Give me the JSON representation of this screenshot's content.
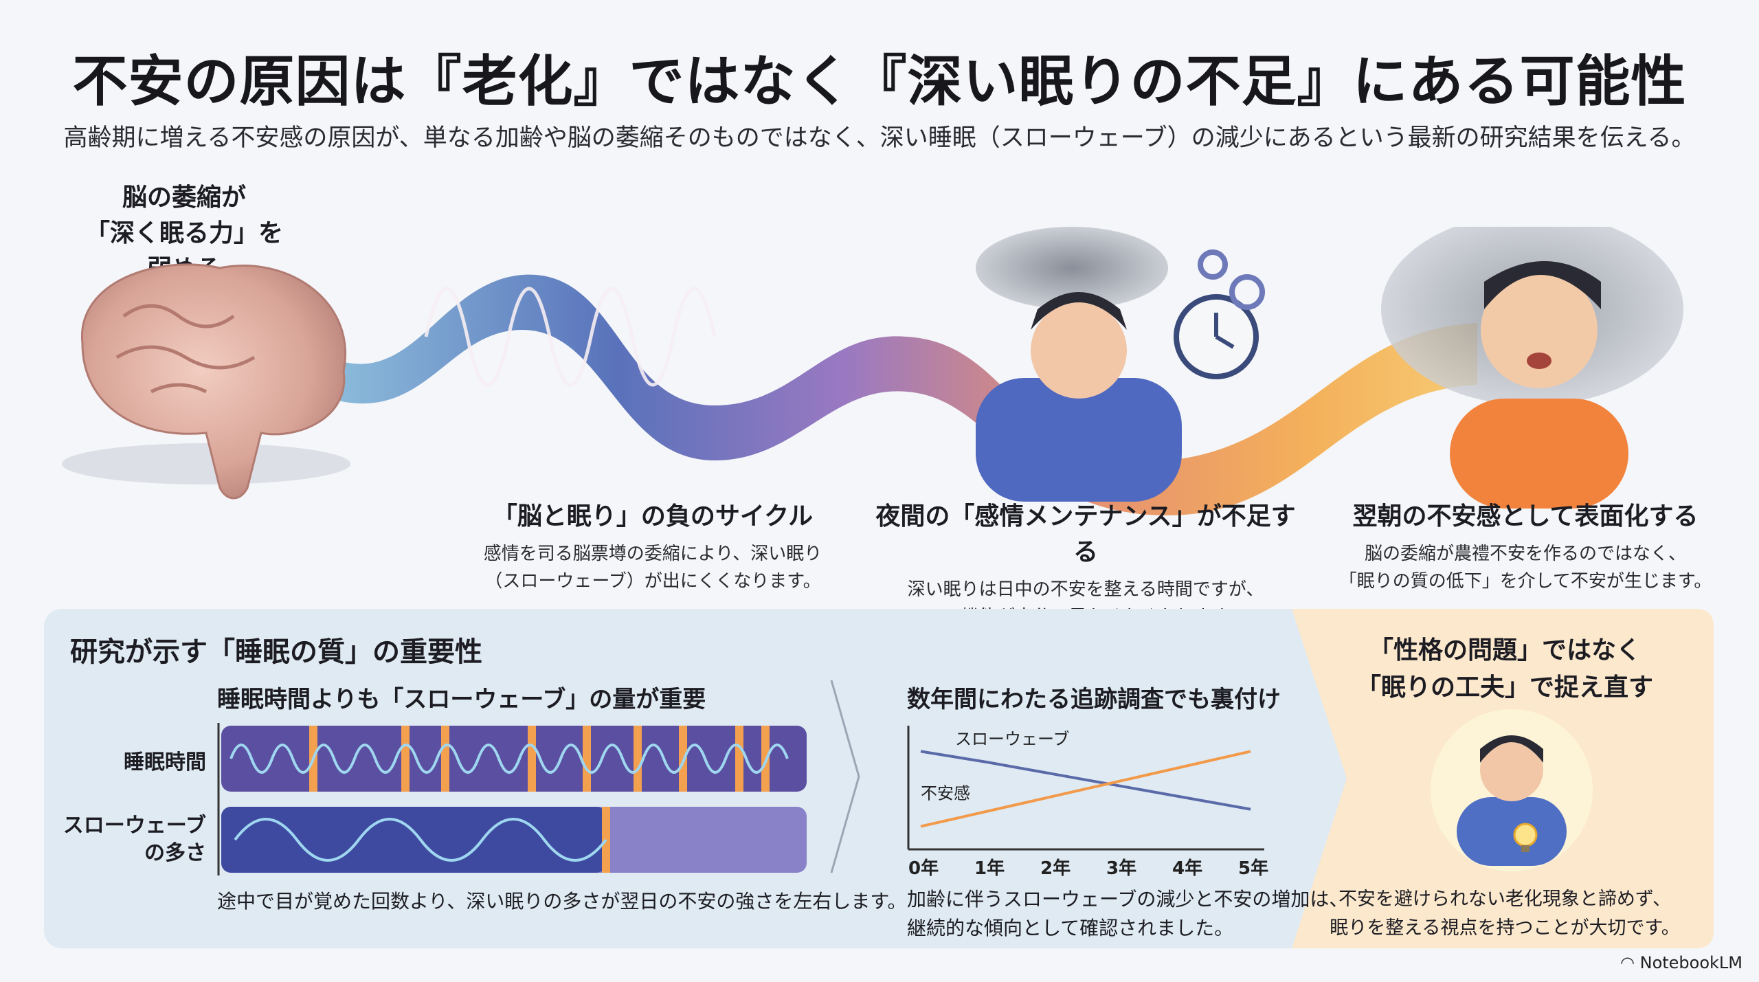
{
  "title": "不安の原因は『老化』ではなく『深い眠りの不足』にある可能性",
  "subtitle": "高齢期に増える不安感の原因が、単なる加齢や脳の萎縮そのものではなく、深い睡眠（スローウェーブ）の減少にあるという最新の研究結果を伝える。",
  "flow": {
    "brain_caption_line1": "脳の萎縮が",
    "brain_caption_line2": "「深く眠る力」を弱める",
    "steps": [
      {
        "title": "「脳と眠り」の負のサイクル",
        "body_line1": "感情を司る脳票墫の委縮により、深い眠り",
        "body_line2": "（スローウェーブ）が出にくくなります。"
      },
      {
        "title": "夜間の「感情メンテナンス」が不足する",
        "body_line1": "深い眠りは日中の不安を整える時間ですが、",
        "body_line2": "その機能が十分に果たせなくなります。"
      },
      {
        "title": "翌朝の不安感として表面化する",
        "body_line1": "脳の委縮が農禮不安を作るのではなく、",
        "body_line2": "「眠りの質の低下」を介して不安が生じます。"
      }
    ]
  },
  "panel": {
    "title": "研究が示す「睡眠の質」の重要性",
    "section1": {
      "subtitle": "睡眠時間よりも「スローウェーブ」の量が重要",
      "row1_label": "睡眠時間",
      "row2_label_line1": "スローウェーブ",
      "row2_label_line2": "の多さ",
      "caption": "途中で目が覚めた回数より、深い眠りの多さが翌日の不安の強さを左右します。"
    },
    "section2": {
      "subtitle": "数年間にわたる追跡調査でも裏付け",
      "caption_line1": "加齢に伴うスローウェーブの減少と不安の増加は、",
      "caption_line2": "継続的な傾向として確認されました。"
    },
    "section3": {
      "title_line1": "「性格の問題」ではなく",
      "title_line2": "「眠りの工夫」で捉え直す",
      "caption_line1": "不安を避けられない老化現象と諦めず、",
      "caption_line2": "眠りを整える視点を持つことが大切です。"
    }
  },
  "chart_data": {
    "type": "line",
    "title": "",
    "x": [
      "0年",
      "1年",
      "2年",
      "3年",
      "4年",
      "5年"
    ],
    "series": [
      {
        "name": "スローウェーブ",
        "values": [
          0.85,
          0.75,
          0.64,
          0.53,
          0.42,
          0.31
        ],
        "color": "#5a6aa8"
      },
      {
        "name": "不安感",
        "values": [
          0.15,
          0.29,
          0.43,
          0.57,
          0.71,
          0.85
        ],
        "color": "#f29a4a"
      }
    ],
    "xlabel": "",
    "ylabel": "",
    "ylim": [
      0,
      1
    ],
    "grid": false
  },
  "brand": "NotebookLM",
  "colors": {
    "wave_blue": "#4c63b6",
    "wave_purple": "#8a63b8",
    "wave_orange": "#f1913c",
    "panel_blue": "#dfeaf3",
    "panel_peach": "#fbe8cd"
  }
}
